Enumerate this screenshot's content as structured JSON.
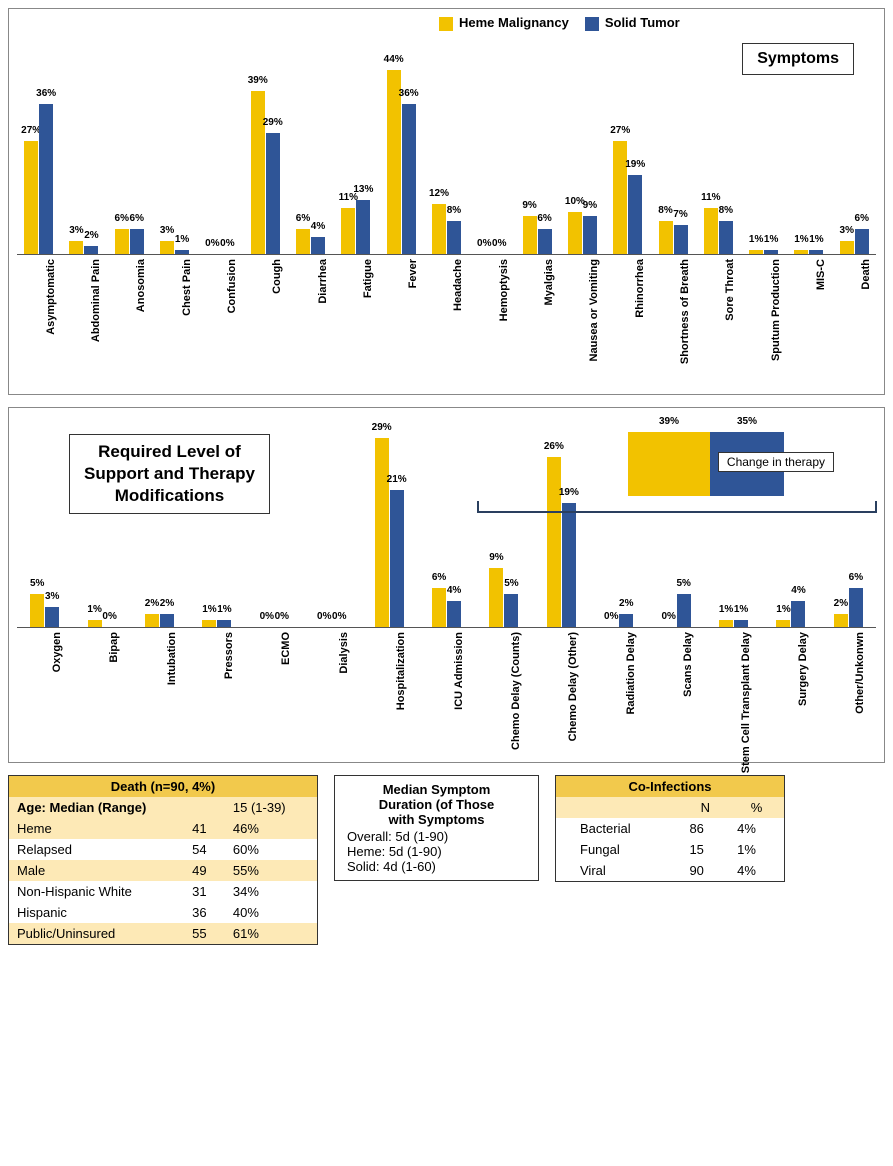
{
  "colors": {
    "heme": "#f2c200",
    "solid": "#2f5597",
    "border": "#333333",
    "alt_row": "#fde9b6",
    "header_row": "#f2c94c"
  },
  "legend": {
    "heme_label": "Heme Malignancy",
    "solid_label": "Solid Tumor"
  },
  "chart1": {
    "title": "Symptoms",
    "ymax": 50,
    "categories": [
      "Asymptomatic",
      "Abdominal Pain",
      "Anosomia",
      "Chest Pain",
      "Confusion",
      "Cough",
      "Diarrhea",
      "Fatigue",
      "Fever",
      "Headache",
      "Hemoptysis",
      "Myalgias",
      "Nausea or Vomiting",
      "Rhinorrhea",
      "Shortness of Breath",
      "Sore Throat",
      "Sputum Production",
      "MIS-C",
      "Death"
    ],
    "heme": [
      27,
      3,
      6,
      3,
      0,
      39,
      6,
      11,
      44,
      12,
      0,
      9,
      10,
      27,
      8,
      11,
      1,
      1,
      3
    ],
    "solid": [
      36,
      2,
      6,
      1,
      0,
      29,
      4,
      13,
      36,
      8,
      0,
      6,
      9,
      19,
      7,
      8,
      1,
      1,
      6
    ],
    "label_area_height": 135
  },
  "chart2": {
    "title_lines": [
      "Required Level of",
      "Support and Therapy",
      "Modifications"
    ],
    "ymax": 32,
    "label_area_height": 130,
    "categories": [
      "Oxygen",
      "Bipap",
      "Intubation",
      "Pressors",
      "ECMO",
      "Dialysis",
      "Hospitalization",
      "ICU Admission",
      "Chemo Delay (Counts)",
      "Chemo Delay (Other)",
      "Radiation Delay",
      "Scans Delay",
      "Stem Cell Transplant Delay",
      "Surgery Delay",
      "Other/Unkonwn"
    ],
    "heme": [
      5,
      1,
      2,
      1,
      0,
      0,
      29,
      6,
      9,
      26,
      0,
      0,
      1,
      1,
      2
    ],
    "solid": [
      3,
      0,
      2,
      1,
      0,
      0,
      21,
      4,
      5,
      19,
      2,
      5,
      1,
      4,
      6
    ],
    "change_in_therapy": {
      "label": "Change in therapy",
      "heme": 39,
      "solid": 35
    }
  },
  "death_table": {
    "title": "Death  (n=90, 4%)",
    "age_row": {
      "label": "Age: Median (Range)",
      "value": "15 (1-39)"
    },
    "rows": [
      {
        "label": "Heme",
        "n": "41",
        "pct": "46%",
        "alt": true
      },
      {
        "label": "Relapsed",
        "n": "54",
        "pct": "60%",
        "alt": false
      },
      {
        "label": "Male",
        "n": "49",
        "pct": "55%",
        "alt": true
      },
      {
        "label": "Non-Hispanic White",
        "n": "31",
        "pct": "34%",
        "alt": false
      },
      {
        "label": "Hispanic",
        "n": "36",
        "pct": "40%",
        "alt": false
      },
      {
        "label": "Public/Uninsured",
        "n": "55",
        "pct": "61%",
        "alt": true
      }
    ]
  },
  "median_box": {
    "title_lines": [
      "Median Symptom",
      "Duration (of Those",
      "with Symptoms"
    ],
    "lines": [
      "Overall: 5d (1-90)",
      "Heme:  5d (1-90)",
      "Solid: 4d (1-60)"
    ]
  },
  "coinfections": {
    "title": "Co-Infections",
    "columns": [
      "",
      "N",
      "%"
    ],
    "rows": [
      {
        "label": "Bacterial",
        "n": "86",
        "pct": "4%"
      },
      {
        "label": "Fungal",
        "n": "15",
        "pct": "1%"
      },
      {
        "label": "Viral",
        "n": "90",
        "pct": "4%"
      }
    ]
  }
}
